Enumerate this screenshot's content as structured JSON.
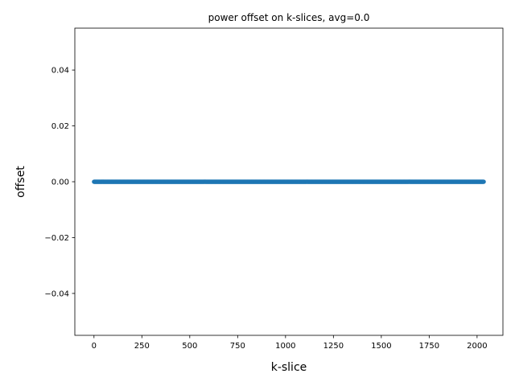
{
  "chart_data": {
    "type": "scatter",
    "title": "power offset on k-slices, avg=0.0",
    "xlabel": "k-slice",
    "ylabel": "offset",
    "xlim": [
      -100,
      2135
    ],
    "ylim": [
      -0.055,
      0.055
    ],
    "xticks": [
      0,
      250,
      500,
      750,
      1000,
      1250,
      1500,
      1750,
      2000
    ],
    "xtick_labels": [
      "0",
      "250",
      "500",
      "750",
      "1000",
      "1250",
      "1500",
      "1750",
      "2000"
    ],
    "yticks": [
      -0.04,
      -0.02,
      0.0,
      0.02,
      0.04
    ],
    "ytick_labels": [
      "−0.04",
      "−0.02",
      "0.00",
      "0.02",
      "0.04"
    ],
    "series": [
      {
        "color": "#1f77b4",
        "x_range": [
          0,
          2035
        ],
        "x_step": 1,
        "y_constant": 0.0
      }
    ],
    "grid": false,
    "legend": "none"
  }
}
